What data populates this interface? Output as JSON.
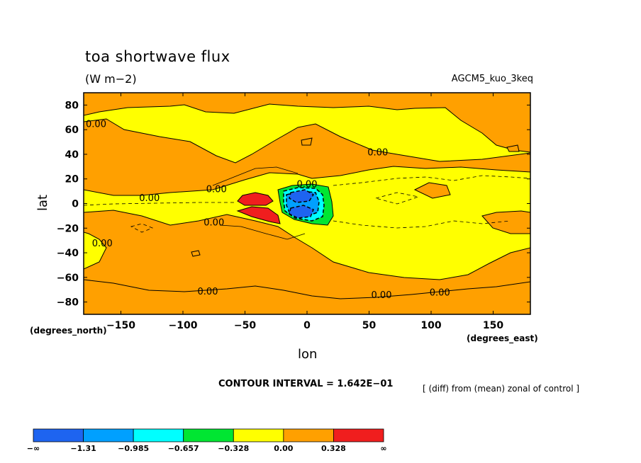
{
  "chart_data": {
    "type": "heatmap",
    "title": "toa shortwave flux",
    "units": "(W m−2)",
    "model": "AGCM5_kuo_3keq",
    "xlabel": "lon",
    "ylabel": "lat",
    "x_units": "(degrees_east)",
    "y_units": "(degrees_north)",
    "xlim": [
      -180,
      180
    ],
    "ylim": [
      -90,
      90
    ],
    "x_ticks": [
      -150,
      -100,
      -50,
      0,
      50,
      100,
      150
    ],
    "x_tick_labels": [
      "−150",
      "−100",
      "−50",
      "0",
      "50",
      "100",
      "150"
    ],
    "y_ticks": [
      80,
      60,
      40,
      20,
      0,
      -20,
      -40,
      -60,
      -80
    ],
    "y_tick_labels": [
      "80",
      "60",
      "40",
      "20",
      "0",
      "−20",
      "−40",
      "−60",
      "−80"
    ],
    "contour_interval_text": "CONTOUR INTERVAL = 1.642E−01",
    "note": "[ (diff) from (mean) zonal of control ]",
    "contour_labels": [
      {
        "text": "0.00",
        "lon": -170,
        "lat": 65
      },
      {
        "text": "0.00",
        "lon": 57,
        "lat": 42
      },
      {
        "text": "0.00",
        "lon": -127,
        "lat": 5
      },
      {
        "text": "0.00",
        "lon": -73,
        "lat": 12
      },
      {
        "text": "0.00",
        "lon": 0,
        "lat": 16
      },
      {
        "text": "0.00",
        "lon": -75,
        "lat": -15
      },
      {
        "text": "0.00",
        "lon": -165,
        "lat": -32
      },
      {
        "text": "0.00",
        "lon": -80,
        "lat": -71
      },
      {
        "text": "0.00",
        "lon": 60,
        "lat": -74
      },
      {
        "text": "0.00",
        "lon": 107,
        "lat": -72
      }
    ],
    "colorbar": {
      "colors": [
        "#1e64f0",
        "#00a0ff",
        "#00ffff",
        "#00e632",
        "#ffff00",
        "#ffa000",
        "#f01e1e"
      ],
      "labels": [
        "−∞",
        "−1.31",
        "−0.985",
        "−0.657",
        "−0.328",
        "0.00",
        "0.328",
        "∞"
      ]
    },
    "fill_colors": {
      "positive_light": "#ffa000",
      "neutral": "#ffff00",
      "positive_strong": "#f01e1e",
      "neg_1": "#00e632",
      "neg_2": "#00ffff",
      "neg_3": "#00a0ff",
      "neg_4": "#1e64f0"
    }
  }
}
